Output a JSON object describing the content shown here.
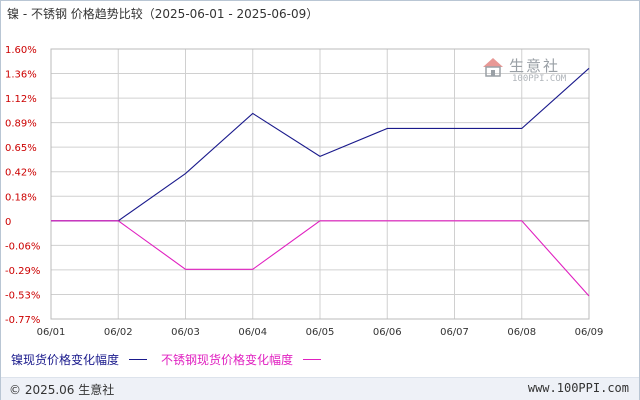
{
  "title": "镍 - 不锈钢 价格趋势比较（2025-06-01 - 2025-06-09）",
  "watermark": {
    "name": "生意社",
    "url": "100PPI.COM"
  },
  "footer": {
    "copyright": "© 2025.06 生意社",
    "site": "www.100PPI.com"
  },
  "colors": {
    "nickel": "#1a1a8c",
    "stainless": "#e020c0",
    "tick": "#cc0000",
    "grid": "#d0d0d0"
  },
  "chart_data": {
    "type": "line",
    "categories": [
      "06/01",
      "06/02",
      "06/03",
      "06/04",
      "06/05",
      "06/06",
      "06/07",
      "06/08",
      "06/09"
    ],
    "y_ticks": [
      "1.60%",
      "1.36%",
      "1.12%",
      "0.89%",
      "0.65%",
      "0.42%",
      "0.18%",
      "0",
      "-0.06%",
      "-0.29%",
      "-0.53%",
      "-0.77%"
    ],
    "ylim": [
      -0.77,
      1.6
    ],
    "grid": true,
    "legend_position": "bottom-left",
    "series": [
      {
        "name": "镍现货价格变化幅度",
        "color": "#1a1a8c",
        "values": [
          0,
          0,
          0.44,
          1.0,
          0.6,
          0.86,
          0.86,
          0.86,
          1.42
        ]
      },
      {
        "name": "不锈钢现货价格变化幅度",
        "color": "#e020c0",
        "values": [
          0,
          0,
          -0.38,
          -0.38,
          0,
          0,
          0,
          0,
          -0.59
        ]
      }
    ]
  }
}
